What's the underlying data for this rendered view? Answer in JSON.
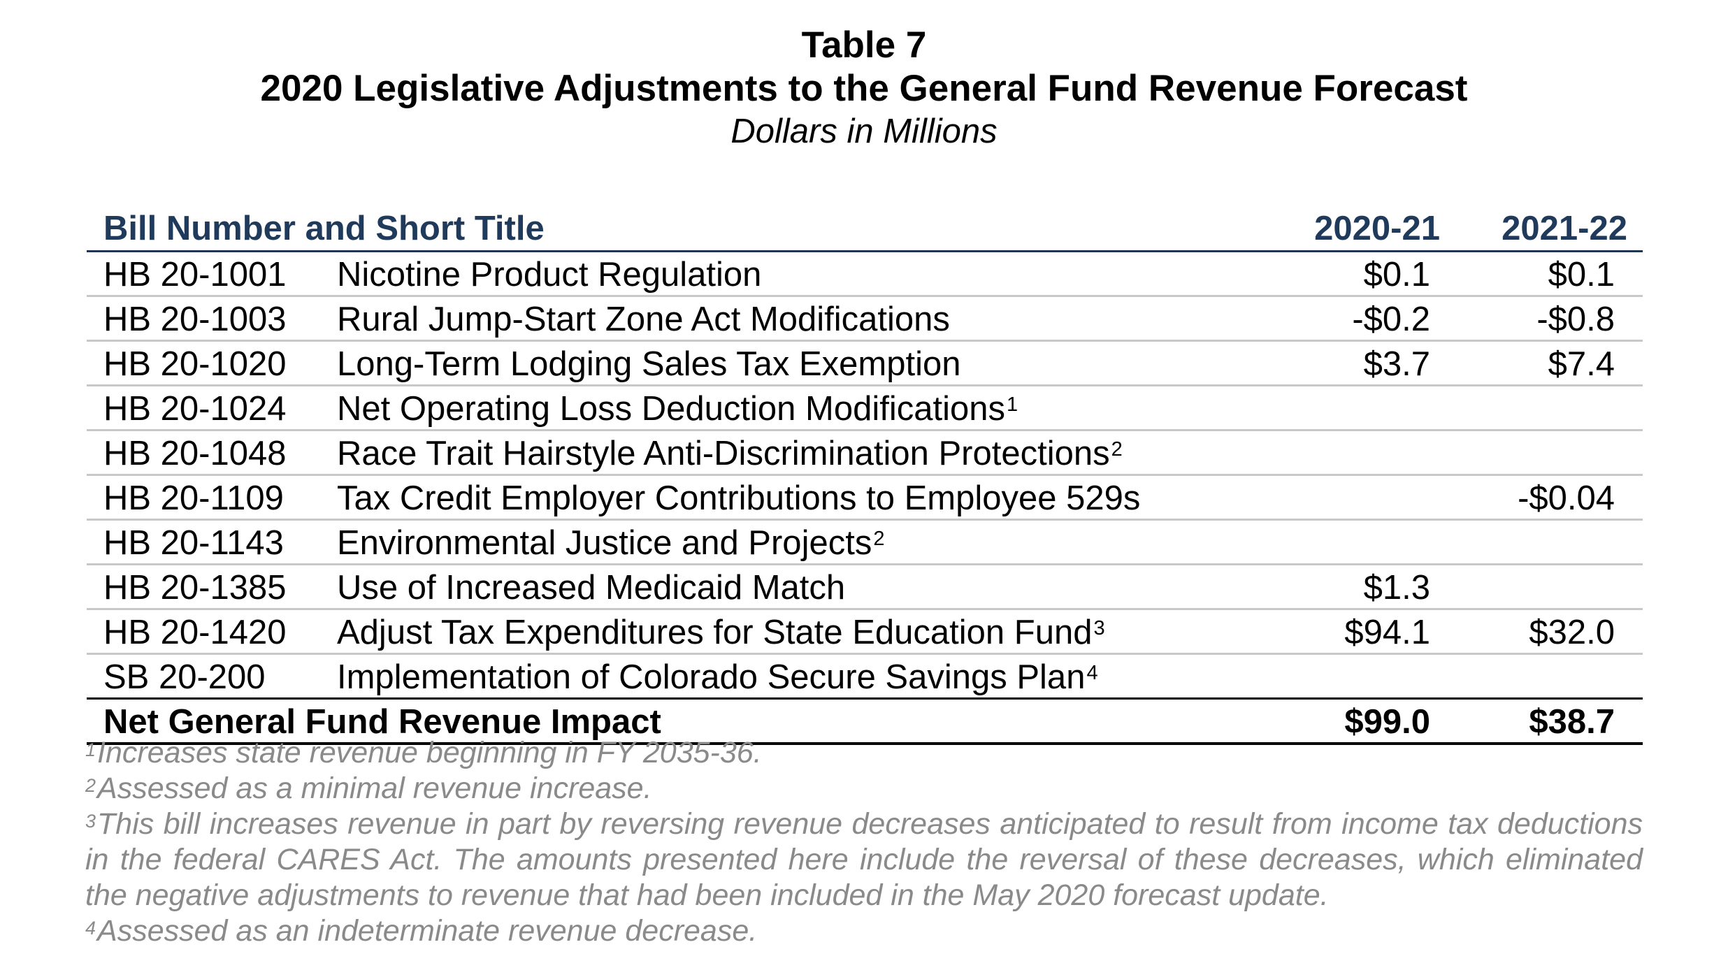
{
  "table_number": "Table 7",
  "title": "2020 Legislative Adjustments to the General Fund Revenue Forecast",
  "subtitle": "Dollars in Millions",
  "header": {
    "title_col": "Bill Number and Short Title",
    "year1": "2020-21",
    "year2": "2021-22"
  },
  "rows": [
    {
      "bill": "HB 20-1001",
      "title": "Nicotine Product Regulation",
      "note": "",
      "y1": "$0.1",
      "y2": "$0.1"
    },
    {
      "bill": "HB 20-1003",
      "title": "Rural Jump-Start Zone Act Modifications",
      "note": "",
      "y1": "-$0.2",
      "y2": "-$0.8"
    },
    {
      "bill": "HB 20-1020",
      "title": "Long-Term Lodging Sales Tax Exemption",
      "note": "",
      "y1": "$3.7",
      "y2": "$7.4"
    },
    {
      "bill": "HB 20-1024",
      "title": "Net Operating Loss Deduction Modifications",
      "note": "1",
      "y1": "",
      "y2": ""
    },
    {
      "bill": "HB 20-1048",
      "title": "Race Trait Hairstyle Anti-Discrimination Protections",
      "note": "2",
      "y1": "",
      "y2": ""
    },
    {
      "bill": "HB 20-1109",
      "title": "Tax Credit Employer Contributions to Employee 529s",
      "note": "",
      "y1": "",
      "y2": "-$0.04"
    },
    {
      "bill": "HB 20-1143",
      "title": "Environmental Justice and Projects",
      "note": "2",
      "y1": "",
      "y2": ""
    },
    {
      "bill": "HB 20-1385",
      "title": "Use of Increased Medicaid Match",
      "note": "",
      "y1": "$1.3",
      "y2": ""
    },
    {
      "bill": "HB 20-1420",
      "title": "Adjust Tax Expenditures for State Education Fund",
      "note": "3",
      "y1": "$94.1",
      "y2": "$32.0"
    },
    {
      "bill": "SB 20-200",
      "title": "Implementation of Colorado Secure Savings Plan",
      "note": "4",
      "y1": "",
      "y2": ""
    }
  ],
  "total": {
    "label": "Net General Fund Revenue Impact",
    "y1": "$99.0",
    "y2": "$38.7"
  },
  "footnotes": [
    {
      "mark": "1",
      "text": "Increases state revenue beginning in FY 2035-36."
    },
    {
      "mark": "2",
      "text": "Assessed as a minimal revenue increase."
    },
    {
      "mark": "3",
      "text": "This bill increases revenue in part by reversing revenue decreases anticipated to result from income tax deductions in the federal CARES Act.  The amounts presented here include the reversal of these decreases, which eliminated the negative adjustments to revenue that had been included in the May 2020 forecast update."
    },
    {
      "mark": "4",
      "text": "Assessed as an indeterminate revenue decrease."
    }
  ]
}
